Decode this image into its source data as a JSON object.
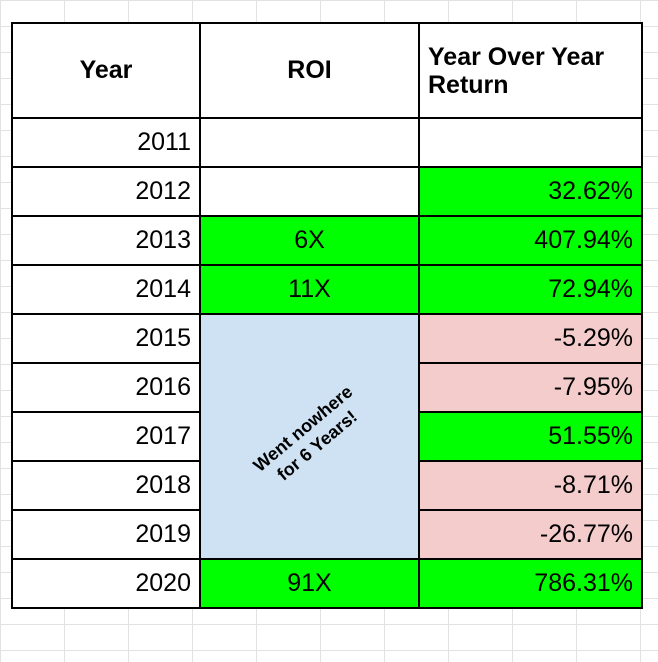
{
  "table": {
    "headers": {
      "year": "Year",
      "roi": "ROI",
      "return": "Year Over Year\nReturn"
    },
    "rows": [
      {
        "year": "2011",
        "roi": "",
        "return": ""
      },
      {
        "year": "2012",
        "roi": "",
        "return": "32.62%"
      },
      {
        "year": "2013",
        "roi": "6X",
        "return": "407.94%"
      },
      {
        "year": "2014",
        "roi": "11X",
        "return": "72.94%"
      },
      {
        "year": "2015",
        "roi": "",
        "return": "-5.29%"
      },
      {
        "year": "2016",
        "roi": "",
        "return": "-7.95%"
      },
      {
        "year": "2017",
        "roi": "",
        "return": "51.55%"
      },
      {
        "year": "2018",
        "roi": "",
        "return": "-8.71%"
      },
      {
        "year": "2019",
        "roi": "",
        "return": "-26.77%"
      },
      {
        "year": "2020",
        "roi": "91X",
        "return": "786.31%"
      }
    ],
    "merged_note": "Went nowhere\nfor 6 Years!"
  },
  "colors": {
    "positive": "#00ff00",
    "negative": "#f4cccc",
    "note": "#cfe2f3"
  }
}
